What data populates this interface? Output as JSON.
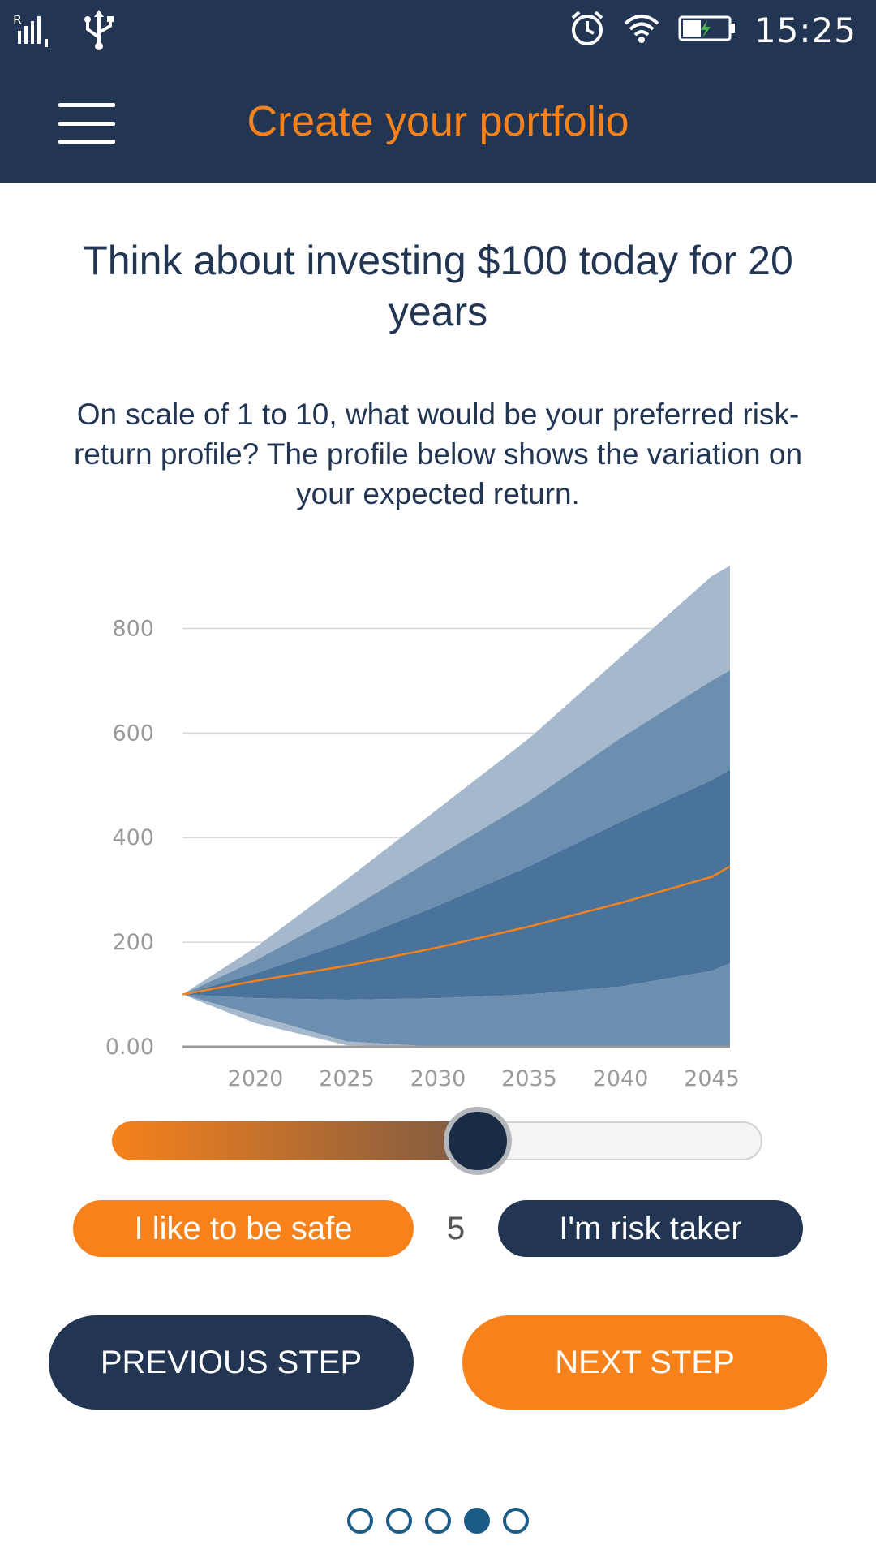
{
  "status_bar": {
    "time": "15:25",
    "left_icons": [
      "signal-icon",
      "usb-icon"
    ],
    "right_icons": [
      "alarm-icon",
      "wifi-icon",
      "battery-charging-icon"
    ]
  },
  "app_bar": {
    "title": "Create your portfolio",
    "menu_icon": "hamburger-menu-icon"
  },
  "headline": "Think about investing $100 today for 20 years",
  "question": "On scale of 1 to 10, what would be your preferred risk-return profile? The profile below shows the variation on your expected return.",
  "chart_data": {
    "type": "area",
    "x": [
      2016,
      2020,
      2025,
      2030,
      2035,
      2040,
      2045,
      2046
    ],
    "x_tick_labels": [
      "2020",
      "2025",
      "2030",
      "2035",
      "2040",
      "2045"
    ],
    "y_tick_labels": [
      "0.00",
      "200",
      "400",
      "600",
      "800"
    ],
    "y_ticks": [
      0,
      200,
      400,
      600,
      800
    ],
    "ylim": [
      0,
      900
    ],
    "xlim": [
      2016,
      2046
    ],
    "grid": true,
    "series": [
      {
        "values": [
          100,
          190,
          320,
          455,
          590,
          745,
          900,
          920
        ]
      },
      {
        "values": [
          100,
          165,
          260,
          365,
          470,
          590,
          700,
          720
        ]
      },
      {
        "values": [
          100,
          140,
          200,
          270,
          345,
          430,
          510,
          530
        ]
      },
      {
        "values": [
          100,
          126,
          155,
          190,
          230,
          275,
          325,
          345
        ]
      },
      {
        "values": [
          100,
          93,
          90,
          93,
          100,
          115,
          145,
          160
        ]
      },
      {
        "values": [
          100,
          45,
          3,
          0,
          0,
          0,
          0,
          0
        ]
      },
      {
        "values": [
          100,
          60,
          10,
          0,
          0,
          0,
          0,
          0
        ]
      }
    ],
    "colors": [
      "#a5b8cc",
      "#6d8faf",
      "#4a739b",
      "#f7821b"
    ]
  },
  "slider": {
    "min": 1,
    "max": 10,
    "value": 5,
    "fraction": 0.56
  },
  "risk_level": "5",
  "buttons": {
    "safe": "I like to be safe",
    "risk": "I'm risk taker",
    "previous": "PREVIOUS STEP",
    "next": "NEXT STEP"
  },
  "pagination": {
    "total": 5,
    "active_index": 3
  }
}
